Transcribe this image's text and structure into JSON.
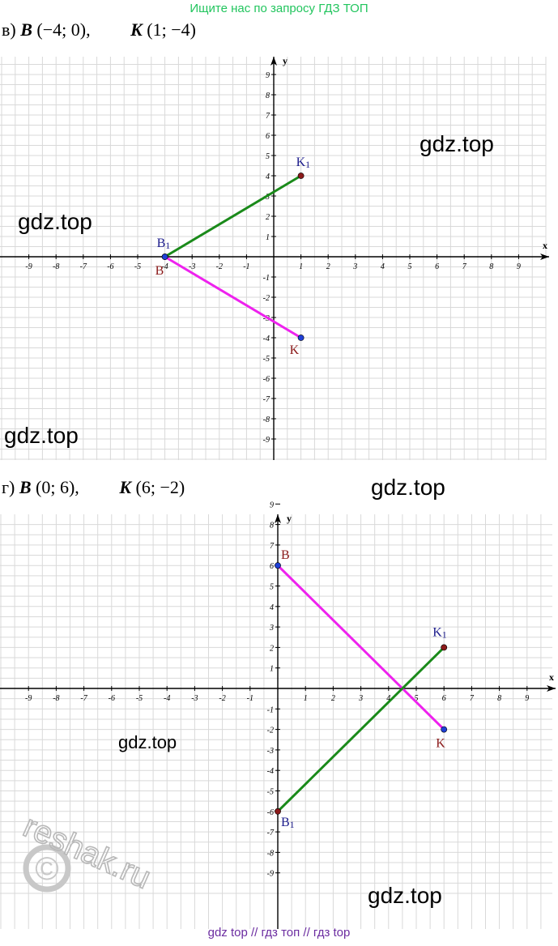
{
  "banner_top": {
    "text": "Ищите нас по запросу ГДЗ ТОП",
    "color": "#22c55e"
  },
  "banner_bottom": {
    "text": "gdz top  //  гдз топ  //  гдз top",
    "color": "#6b2ca0"
  },
  "watermarks": [
    "gdz.top",
    "gdz.top",
    "gdz.top",
    "gdz.top",
    "gdz.top",
    "gdz.top"
  ],
  "logo": {
    "text": "reshak.ru",
    "symbol": "©"
  },
  "colors": {
    "grid": "#d9d9d9",
    "axis": "#000000",
    "segment_bk": "#ee22ee",
    "segment_b1k1": "#1a8a1a",
    "label_blue": "#1c1c8c",
    "label_red": "#8b1a1a",
    "dot_blue": "#1f3fd6",
    "dot_red": "#8b1a1a"
  },
  "tasks": [
    {
      "letter": "в)",
      "B_label": "B",
      "B_coords": "(−4; 0),",
      "K_label": "K",
      "K_coords": "(1; −4)"
    },
    {
      "letter": "г)",
      "B_label": "B",
      "B_coords": "(0; 6),",
      "K_label": "K",
      "K_coords": "(6; −2)"
    }
  ],
  "chart_data": [
    {
      "type": "line",
      "xlabel": "x",
      "ylabel": "y",
      "xlim": [
        -10,
        10
      ],
      "ylim": [
        -10,
        10
      ],
      "x_ticks": [
        -9,
        -8,
        -7,
        -6,
        -5,
        -4,
        -3,
        -2,
        -1,
        1,
        2,
        3,
        4,
        5,
        6,
        7,
        8,
        9
      ],
      "y_ticks": [
        -9,
        -8,
        -7,
        -6,
        -5,
        -4,
        -3,
        -2,
        -1,
        1,
        2,
        3,
        4,
        5,
        6,
        7,
        8,
        9
      ],
      "grid": true,
      "points": [
        {
          "name": "B",
          "label": "B",
          "x": -4,
          "y": 0,
          "dot": "blue",
          "label_color": "red"
        },
        {
          "name": "K",
          "label": "K",
          "x": 1,
          "y": -4,
          "dot": "blue",
          "label_color": "red"
        },
        {
          "name": "B1",
          "label": "B",
          "sub": "1",
          "x": -4,
          "y": 0,
          "dot": "blue",
          "label_color": "blue"
        },
        {
          "name": "K1",
          "label": "K",
          "sub": "1",
          "x": 1,
          "y": 4,
          "dot": "red",
          "label_color": "blue"
        }
      ],
      "segments": [
        {
          "from": [
            -4,
            0
          ],
          "to": [
            1,
            -4
          ],
          "color": "magenta"
        },
        {
          "from": [
            -4,
            0
          ],
          "to": [
            1,
            4
          ],
          "color": "green"
        }
      ]
    },
    {
      "type": "line",
      "xlabel": "x",
      "ylabel": "y",
      "xlim": [
        -10,
        10
      ],
      "ylim": [
        -10,
        10
      ],
      "x_ticks": [
        -9,
        -8,
        -7,
        -6,
        -5,
        -4,
        -3,
        -2,
        -1,
        1,
        2,
        3,
        4,
        5,
        6,
        7,
        8,
        9
      ],
      "y_ticks": [
        -9,
        -8,
        -7,
        -6,
        -5,
        -4,
        -3,
        -2,
        -1,
        1,
        2,
        3,
        4,
        5,
        6,
        7,
        8,
        9
      ],
      "grid": true,
      "points": [
        {
          "name": "B",
          "label": "B",
          "x": 0,
          "y": 6,
          "dot": "blue",
          "label_color": "red"
        },
        {
          "name": "K",
          "label": "K",
          "x": 6,
          "y": -2,
          "dot": "blue",
          "label_color": "red"
        },
        {
          "name": "B1",
          "label": "B",
          "sub": "1",
          "x": 0,
          "y": -6,
          "dot": "red",
          "label_color": "blue"
        },
        {
          "name": "K1",
          "label": "K",
          "sub": "1",
          "x": 6,
          "y": 2,
          "dot": "red",
          "label_color": "blue"
        }
      ],
      "segments": [
        {
          "from": [
            0,
            6
          ],
          "to": [
            6,
            -2
          ],
          "color": "magenta"
        },
        {
          "from": [
            0,
            -6
          ],
          "to": [
            6,
            2
          ],
          "color": "green"
        }
      ]
    }
  ]
}
